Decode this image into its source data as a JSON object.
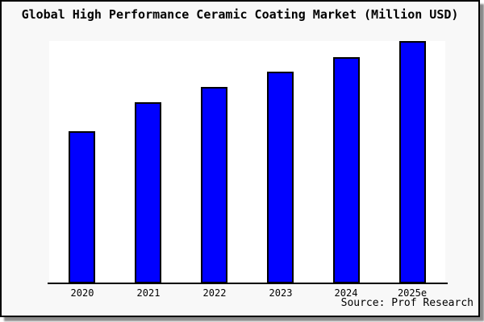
{
  "window": {
    "background_color": "#f8f8f8",
    "plot_background_color": "#ffffff",
    "border_color": "#000000",
    "shadow_color": "#8a8a8a"
  },
  "chart_data": {
    "type": "bar",
    "title": "Global High Performance Ceramic Coating Market (Million USD)",
    "categories": [
      "2020",
      "2021",
      "2022",
      "2023",
      "2024",
      "2025e"
    ],
    "values": [
      62.8,
      74.8,
      81.1,
      87.4,
      93.5,
      100
    ],
    "values_note": "relative units estimated from bar pixel heights; chart shows no y-axis scale",
    "xlabel": "",
    "ylabel": "",
    "ylim": [
      0,
      100
    ],
    "grid": false,
    "legend": null,
    "y_axis_visible": false,
    "bar_color": "#0000ff",
    "bar_edge_color": "#000000"
  },
  "footer": {
    "source_label": "Source: Prof Research"
  }
}
